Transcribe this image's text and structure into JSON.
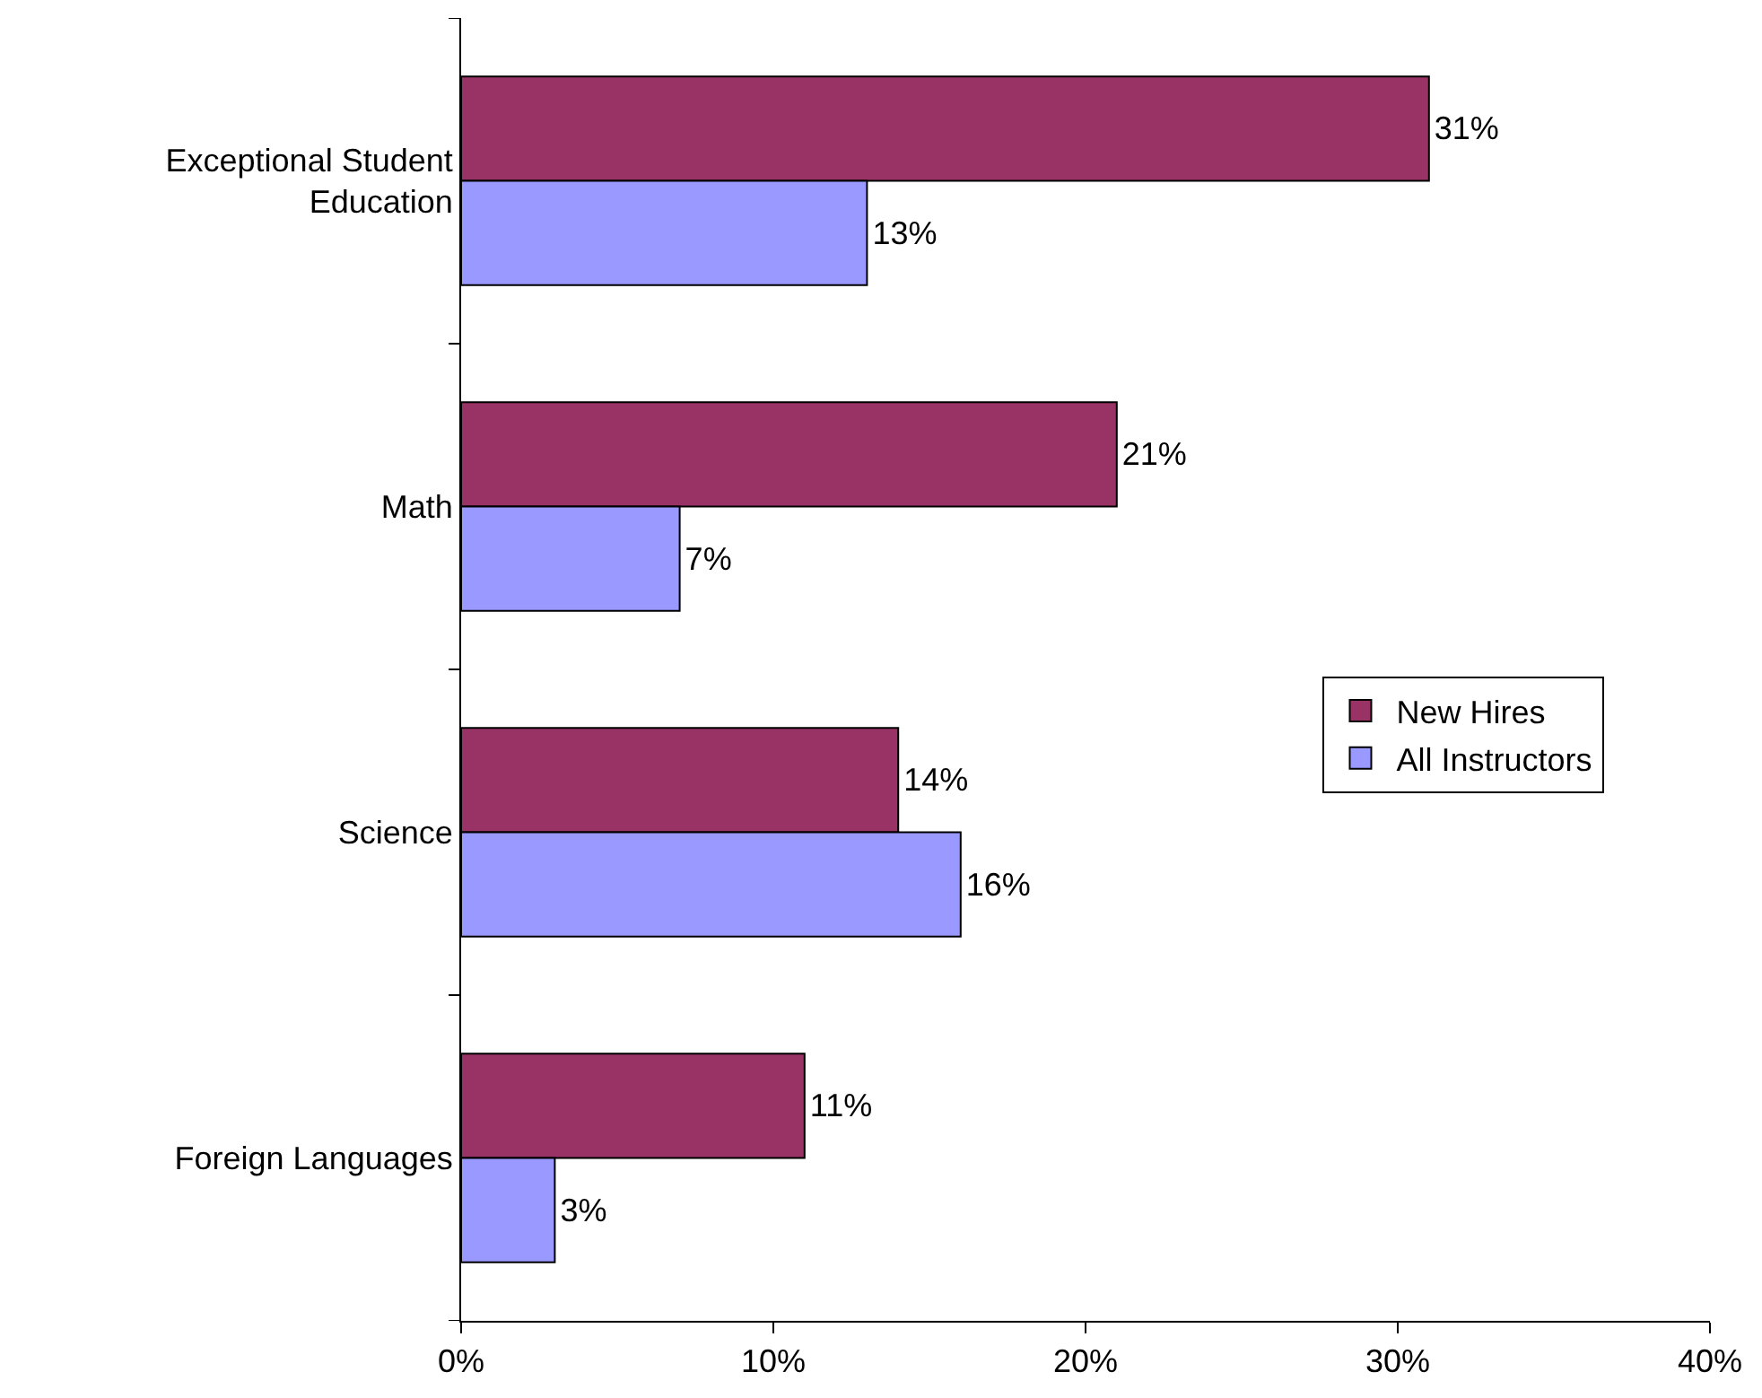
{
  "chart_data": {
    "type": "bar",
    "orientation": "horizontal",
    "categories": [
      "Exceptional Student Education",
      "Math",
      "Science",
      "Foreign Languages"
    ],
    "series": [
      {
        "name": "New Hires",
        "color": "#993366",
        "values": [
          31,
          21,
          14,
          11
        ],
        "value_labels": [
          "31%",
          "21%",
          "14%",
          "11%"
        ]
      },
      {
        "name": "All Instructors",
        "color": "#9999ff",
        "values": [
          13,
          7,
          16,
          3
        ],
        "value_labels": [
          "13%",
          "7%",
          "16%",
          "3%"
        ]
      }
    ],
    "xlim": [
      0,
      40
    ],
    "xticks": [
      {
        "value": 0,
        "label": "0%"
      },
      {
        "value": 10,
        "label": "10%"
      },
      {
        "value": 20,
        "label": "20%"
      },
      {
        "value": 30,
        "label": "30%"
      },
      {
        "value": 40,
        "label": "40%"
      }
    ],
    "grid": false,
    "legend": "right"
  }
}
